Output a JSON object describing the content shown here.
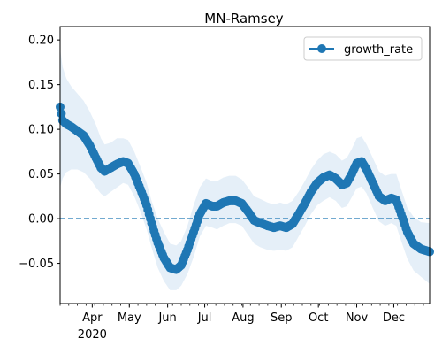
{
  "chart_data": {
    "type": "line",
    "title": "MN-Ramsey",
    "xlabel": "",
    "ylabel": "",
    "x_domain": [
      "2020-03-06",
      "2020-12-30"
    ],
    "ylim": [
      -0.095,
      0.215
    ],
    "y_ticks": [
      -0.05,
      0.0,
      0.05,
      0.1,
      0.15,
      0.2
    ],
    "y_tick_labels": [
      "−0.05",
      "0.00",
      "0.05",
      "0.10",
      "0.15",
      "0.20"
    ],
    "x_ticks": [
      {
        "date": "2020-04-01",
        "label": "Apr",
        "sublabel": "2020"
      },
      {
        "date": "2020-05-01",
        "label": "May"
      },
      {
        "date": "2020-06-01",
        "label": "Jun"
      },
      {
        "date": "2020-07-01",
        "label": "Jul"
      },
      {
        "date": "2020-08-01",
        "label": "Aug"
      },
      {
        "date": "2020-09-01",
        "label": "Sep"
      },
      {
        "date": "2020-10-01",
        "label": "Oct"
      },
      {
        "date": "2020-11-01",
        "label": "Nov"
      },
      {
        "date": "2020-12-01",
        "label": "Dec"
      }
    ],
    "legend": {
      "position": "top-right",
      "entries": [
        "growth_rate"
      ]
    },
    "reference_line": {
      "y": 0.0,
      "style": "dashed"
    },
    "colors": {
      "line": "#1f77b4",
      "band": "#dce9f5"
    },
    "series": [
      {
        "name": "growth_rate",
        "points": [
          {
            "x": "2020-03-06",
            "y": 0.125,
            "lo": 0.035,
            "hi": 0.19
          },
          {
            "x": "2020-03-08",
            "y": 0.11,
            "lo": 0.045,
            "hi": 0.17
          },
          {
            "x": "2020-03-11",
            "y": 0.106,
            "lo": 0.052,
            "hi": 0.157
          },
          {
            "x": "2020-03-15",
            "y": 0.103,
            "lo": 0.055,
            "hi": 0.148
          },
          {
            "x": "2020-03-20",
            "y": 0.098,
            "lo": 0.055,
            "hi": 0.14
          },
          {
            "x": "2020-03-25",
            "y": 0.093,
            "lo": 0.052,
            "hi": 0.132
          },
          {
            "x": "2020-03-30",
            "y": 0.082,
            "lo": 0.045,
            "hi": 0.12
          },
          {
            "x": "2020-04-04",
            "y": 0.068,
            "lo": 0.035,
            "hi": 0.105
          },
          {
            "x": "2020-04-08",
            "y": 0.057,
            "lo": 0.028,
            "hi": 0.09
          },
          {
            "x": "2020-04-11",
            "y": 0.053,
            "lo": 0.025,
            "hi": 0.083
          },
          {
            "x": "2020-04-16",
            "y": 0.057,
            "lo": 0.03,
            "hi": 0.085
          },
          {
            "x": "2020-04-21",
            "y": 0.061,
            "lo": 0.035,
            "hi": 0.09
          },
          {
            "x": "2020-04-26",
            "y": 0.064,
            "lo": 0.04,
            "hi": 0.09
          },
          {
            "x": "2020-04-30",
            "y": 0.062,
            "lo": 0.038,
            "hi": 0.088
          },
          {
            "x": "2020-05-05",
            "y": 0.05,
            "lo": 0.025,
            "hi": 0.075
          },
          {
            "x": "2020-05-10",
            "y": 0.033,
            "lo": 0.008,
            "hi": 0.058
          },
          {
            "x": "2020-05-15",
            "y": 0.015,
            "lo": -0.012,
            "hi": 0.04
          },
          {
            "x": "2020-05-19",
            "y": -0.005,
            "lo": -0.032,
            "hi": 0.02
          },
          {
            "x": "2020-05-24",
            "y": -0.027,
            "lo": -0.055,
            "hi": 0.0
          },
          {
            "x": "2020-05-29",
            "y": -0.044,
            "lo": -0.07,
            "hi": -0.015
          },
          {
            "x": "2020-06-03",
            "y": -0.055,
            "lo": -0.08,
            "hi": -0.028
          },
          {
            "x": "2020-06-08",
            "y": -0.057,
            "lo": -0.08,
            "hi": -0.03
          },
          {
            "x": "2020-06-12",
            "y": -0.052,
            "lo": -0.075,
            "hi": -0.025
          },
          {
            "x": "2020-06-17",
            "y": -0.035,
            "lo": -0.062,
            "hi": -0.008
          },
          {
            "x": "2020-06-22",
            "y": -0.015,
            "lo": -0.043,
            "hi": 0.015
          },
          {
            "x": "2020-06-27",
            "y": 0.005,
            "lo": -0.02,
            "hi": 0.035
          },
          {
            "x": "2020-07-02",
            "y": 0.017,
            "lo": -0.008,
            "hi": 0.045
          },
          {
            "x": "2020-07-07",
            "y": 0.014,
            "lo": -0.01,
            "hi": 0.042
          },
          {
            "x": "2020-07-11",
            "y": 0.014,
            "lo": -0.012,
            "hi": 0.042
          },
          {
            "x": "2020-07-16",
            "y": 0.018,
            "lo": -0.008,
            "hi": 0.046
          },
          {
            "x": "2020-07-21",
            "y": 0.02,
            "lo": -0.005,
            "hi": 0.048
          },
          {
            "x": "2020-07-26",
            "y": 0.02,
            "lo": -0.005,
            "hi": 0.048
          },
          {
            "x": "2020-07-31",
            "y": 0.017,
            "lo": -0.008,
            "hi": 0.044
          },
          {
            "x": "2020-08-05",
            "y": 0.008,
            "lo": -0.018,
            "hi": 0.035
          },
          {
            "x": "2020-08-10",
            "y": -0.002,
            "lo": -0.028,
            "hi": 0.025
          },
          {
            "x": "2020-08-15",
            "y": -0.005,
            "lo": -0.032,
            "hi": 0.022
          },
          {
            "x": "2020-08-21",
            "y": -0.008,
            "lo": -0.035,
            "hi": 0.018
          },
          {
            "x": "2020-08-26",
            "y": -0.01,
            "lo": -0.036,
            "hi": 0.016
          },
          {
            "x": "2020-08-31",
            "y": -0.008,
            "lo": -0.035,
            "hi": 0.018
          },
          {
            "x": "2020-09-05",
            "y": -0.01,
            "lo": -0.036,
            "hi": 0.016
          },
          {
            "x": "2020-09-10",
            "y": -0.006,
            "lo": -0.032,
            "hi": 0.02
          },
          {
            "x": "2020-09-15",
            "y": 0.005,
            "lo": -0.02,
            "hi": 0.03
          },
          {
            "x": "2020-09-20",
            "y": 0.017,
            "lo": -0.008,
            "hi": 0.042
          },
          {
            "x": "2020-09-25",
            "y": 0.03,
            "lo": 0.005,
            "hi": 0.055
          },
          {
            "x": "2020-09-30",
            "y": 0.04,
            "lo": 0.015,
            "hi": 0.065
          },
          {
            "x": "2020-10-05",
            "y": 0.046,
            "lo": 0.02,
            "hi": 0.072
          },
          {
            "x": "2020-10-10",
            "y": 0.049,
            "lo": 0.024,
            "hi": 0.075
          },
          {
            "x": "2020-10-15",
            "y": 0.045,
            "lo": 0.02,
            "hi": 0.072
          },
          {
            "x": "2020-10-20",
            "y": 0.038,
            "lo": 0.012,
            "hi": 0.065
          },
          {
            "x": "2020-10-24",
            "y": 0.04,
            "lo": 0.014,
            "hi": 0.068
          },
          {
            "x": "2020-10-28",
            "y": 0.05,
            "lo": 0.024,
            "hi": 0.078
          },
          {
            "x": "2020-11-01",
            "y": 0.062,
            "lo": 0.034,
            "hi": 0.09
          },
          {
            "x": "2020-11-05",
            "y": 0.064,
            "lo": 0.036,
            "hi": 0.092
          },
          {
            "x": "2020-11-09",
            "y": 0.055,
            "lo": 0.028,
            "hi": 0.083
          },
          {
            "x": "2020-11-14",
            "y": 0.04,
            "lo": 0.012,
            "hi": 0.068
          },
          {
            "x": "2020-11-19",
            "y": 0.025,
            "lo": -0.003,
            "hi": 0.053
          },
          {
            "x": "2020-11-24",
            "y": 0.02,
            "lo": -0.008,
            "hi": 0.048
          },
          {
            "x": "2020-11-29",
            "y": 0.023,
            "lo": -0.005,
            "hi": 0.05
          },
          {
            "x": "2020-12-03",
            "y": 0.021,
            "lo": -0.008,
            "hi": 0.05
          },
          {
            "x": "2020-12-07",
            "y": 0.005,
            "lo": -0.025,
            "hi": 0.033
          },
          {
            "x": "2020-12-12",
            "y": -0.015,
            "lo": -0.045,
            "hi": 0.012
          },
          {
            "x": "2020-12-17",
            "y": -0.028,
            "lo": -0.058,
            "hi": 0.002
          },
          {
            "x": "2020-12-23",
            "y": -0.034,
            "lo": -0.065,
            "hi": -0.004
          },
          {
            "x": "2020-12-30",
            "y": -0.037,
            "lo": -0.073,
            "hi": -0.005
          }
        ]
      }
    ]
  }
}
